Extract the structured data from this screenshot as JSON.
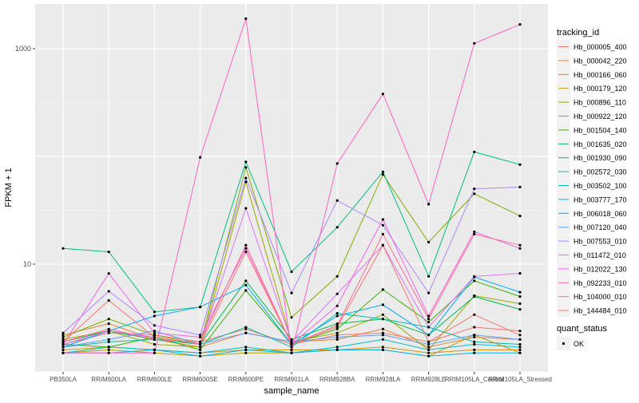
{
  "chart_data": {
    "type": "line",
    "xlabel": "sample_name",
    "ylabel": "FPKM + 1",
    "y_scale": "log10",
    "y_ticks": [
      10,
      1000
    ],
    "y_tick_labels": [
      "10",
      "1000"
    ],
    "ylim": [
      1,
      2600
    ],
    "grid": true,
    "categories": [
      "PB350LA",
      "RRIM600LA",
      "RRIM600LE",
      "RRIM600SE",
      "RRIM600PE",
      "RRIM901LA",
      "RRIM928BA",
      "RRIM928LA",
      "RRIM928LE",
      "RRIM105LA_Control",
      "RRIM105LA_Stressed"
    ],
    "legend": {
      "position": "right",
      "color_title": "tracking_id",
      "shape_title": "quant_status",
      "shape_label": "OK"
    },
    "series": [
      {
        "name": "Hb_000005_400",
        "color": "#F8766D",
        "values": [
          1.8,
          2.3,
          2.2,
          1.9,
          2.5,
          1.8,
          2.2,
          2.3,
          1.9,
          2.6,
          2.4
        ]
      },
      {
        "name": "Hb_000042_220",
        "color": "#EA8331",
        "values": [
          2.2,
          2.8,
          2.0,
          1.7,
          2.3,
          1.9,
          2.0,
          2.5,
          1.7,
          2.1,
          2.0
        ]
      },
      {
        "name": "Hb_000166_060",
        "color": "#D89000",
        "values": [
          1.6,
          1.7,
          1.6,
          1.5,
          1.6,
          1.6,
          1.6,
          1.7,
          1.5,
          1.6,
          1.6
        ]
      },
      {
        "name": "Hb_000179_120",
        "color": "#C09B00",
        "values": [
          1.5,
          1.6,
          1.5,
          1.4,
          1.5,
          1.5,
          1.6,
          1.6,
          1.4,
          2.2,
          1.5
        ]
      },
      {
        "name": "Hb_000896_110",
        "color": "#A3A500",
        "values": [
          2.0,
          2.4,
          1.8,
          1.7,
          58,
          1.9,
          2.3,
          3.4,
          1.6,
          5.1,
          4.3
        ]
      },
      {
        "name": "Hb_000922_120",
        "color": "#7CAE00",
        "values": [
          2.1,
          3.1,
          2.2,
          1.8,
          79,
          3.2,
          7.7,
          68,
          16,
          45,
          28
        ]
      },
      {
        "name": "Hb_001504_140",
        "color": "#39B600",
        "values": [
          1.8,
          1.7,
          2.1,
          1.6,
          5.7,
          1.8,
          2.5,
          5.8,
          2.9,
          7.0,
          5.0
        ]
      },
      {
        "name": "Hb_001635_020",
        "color": "#00BB4E",
        "values": [
          1.9,
          2.4,
          2.0,
          1.8,
          7.0,
          2.0,
          2.8,
          3.1,
          2.2,
          5.0,
          3.8
        ]
      },
      {
        "name": "Hb_001930_090",
        "color": "#00BF7D",
        "values": [
          14,
          13,
          3.6,
          4.0,
          89,
          8.5,
          22,
          72,
          7.7,
          110,
          84
        ]
      },
      {
        "name": "Hb_002572_030",
        "color": "#00C1A3",
        "values": [
          1.7,
          1.9,
          2.0,
          1.8,
          2.6,
          1.7,
          3.5,
          3.1,
          2.6,
          1.9,
          1.8
        ]
      },
      {
        "name": "Hb_003502_100",
        "color": "#00BFC4",
        "values": [
          1.5,
          1.7,
          1.6,
          1.5,
          1.7,
          1.5,
          1.7,
          2.0,
          1.6,
          1.8,
          1.7
        ]
      },
      {
        "name": "Hb_003777_170",
        "color": "#00B8E7",
        "values": [
          1.5,
          1.5,
          1.6,
          1.4,
          1.6,
          1.5,
          1.6,
          1.6,
          1.4,
          1.5,
          1.5
        ]
      },
      {
        "name": "Hb_006018_060",
        "color": "#00A9FF",
        "values": [
          1.7,
          2.4,
          3.3,
          4.0,
          6.4,
          1.8,
          3.3,
          4.2,
          2.2,
          7.6,
          5.5
        ]
      },
      {
        "name": "Hb_007120_040",
        "color": "#619CFF",
        "values": [
          1.7,
          2.0,
          2.4,
          1.8,
          2.3,
          1.9,
          2.1,
          2.2,
          1.8,
          2.2,
          2.0
        ]
      },
      {
        "name": "Hb_007553_010",
        "color": "#AE87FF",
        "values": [
          2.3,
          5.6,
          2.7,
          2.2,
          63,
          5.4,
          39,
          23,
          5.4,
          50,
          52
        ]
      },
      {
        "name": "Hb_011472_010",
        "color": "#DB72FB",
        "values": [
          1.8,
          2.4,
          2.1,
          1.8,
          33,
          1.9,
          5.3,
          15,
          2.6,
          7.7,
          8.2
        ]
      },
      {
        "name": "Hb_012022_130",
        "color": "#F564E3",
        "values": [
          1.8,
          8.2,
          2.3,
          2.1,
          14,
          1.8,
          4.1,
          26,
          3.3,
          20,
          14
        ]
      },
      {
        "name": "Hb_092233_010",
        "color": "#FF61C3",
        "values": [
          1.5,
          1.5,
          1.5,
          98,
          1900,
          1.5,
          86,
          380,
          36,
          1120,
          1680
        ]
      },
      {
        "name": "Hb_104000_010",
        "color": "#FF6C91",
        "values": [
          1.9,
          2.5,
          2.0,
          1.9,
          15,
          1.8,
          2.7,
          19,
          3.1,
          19,
          15
        ]
      },
      {
        "name": "Hb_144484_010",
        "color": "#F8766D",
        "values": [
          1.9,
          4.6,
          2.1,
          1.8,
          13,
          1.8,
          2.6,
          15,
          1.9,
          3.4,
          2.2
        ]
      }
    ]
  }
}
